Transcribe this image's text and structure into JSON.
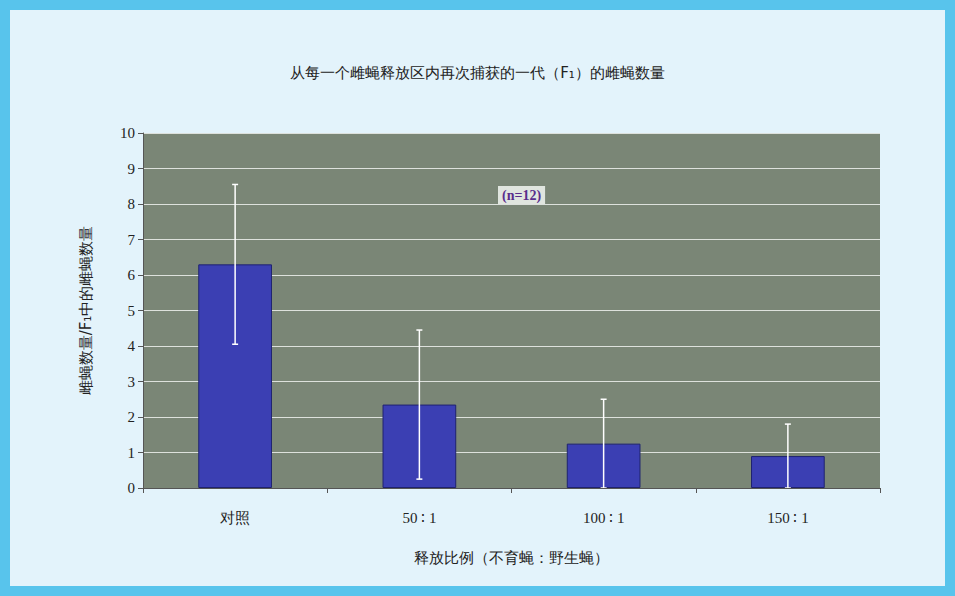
{
  "chart_data": {
    "type": "bar",
    "title": "从每一个雌蝇释放区内再次捕获的一代（F₁）的雌蝇数量",
    "x_label": "释放比例（不育蝇：野生蝇）",
    "y_label": "雌蝇数量/F₁中的雌蝇数量",
    "annotation": "(n=12)",
    "categories": [
      "对照",
      "50 ∶ 1",
      "100 ∶ 1",
      "150 ∶ 1"
    ],
    "values": [
      6.3,
      2.35,
      1.25,
      0.9
    ],
    "errors": [
      2.25,
      2.1,
      1.25,
      0.9
    ],
    "color": "#3b3fb3",
    "ylim": [
      0,
      10
    ],
    "yticks": [
      0,
      1,
      2,
      3,
      4,
      5,
      6,
      7,
      8,
      9,
      10
    ],
    "grid": true
  }
}
